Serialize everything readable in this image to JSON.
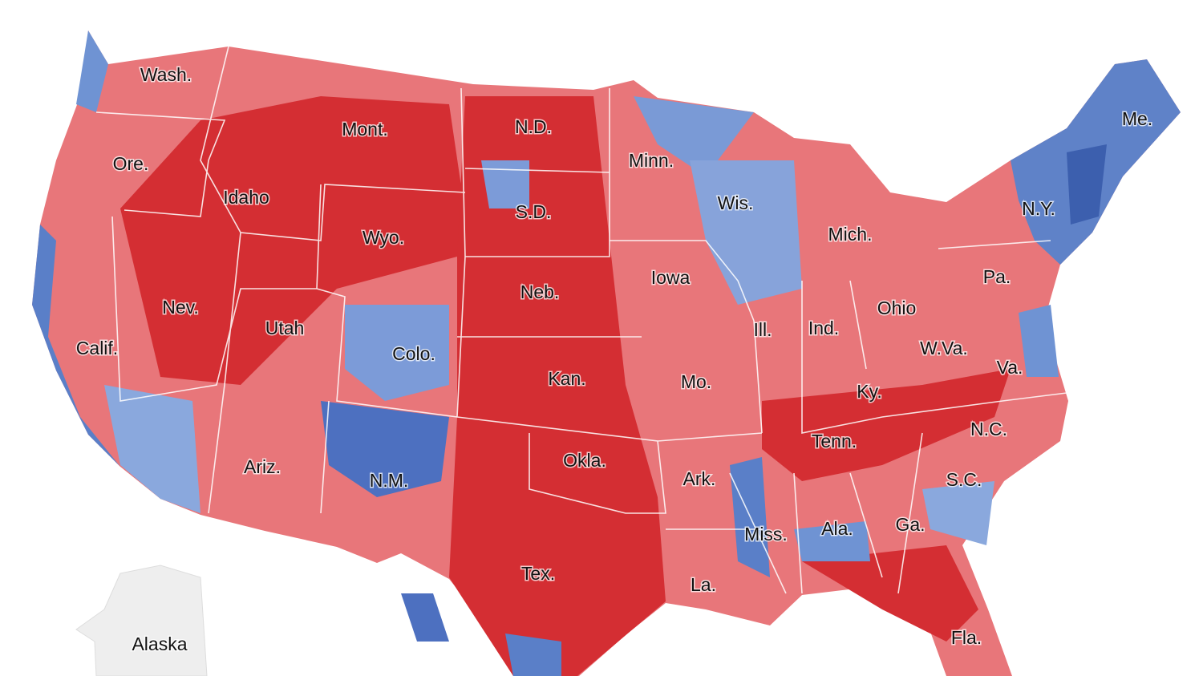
{
  "map": {
    "labels": [
      "Wash.",
      "Mont.",
      "N.D.",
      "Me.",
      "Ore.",
      "Minn.",
      "Idaho",
      "Wis.",
      "S.D.",
      "N.Y.",
      "Wyo.",
      "Mich.",
      "Iowa",
      "Pa.",
      "Neb.",
      "Nev.",
      "Ohio",
      "Utah",
      "Ill.",
      "Ind.",
      "Calif.",
      "Colo.",
      "W.Va.",
      "Va.",
      "Kan.",
      "Mo.",
      "Ky.",
      "N.C.",
      "Tenn.",
      "Okla.",
      "Ariz.",
      "Ark.",
      "N.M.",
      "S.C.",
      "Ga.",
      "Ala.",
      "Miss.",
      "Tex.",
      "La.",
      "Fla.",
      "Alaska"
    ]
  }
}
